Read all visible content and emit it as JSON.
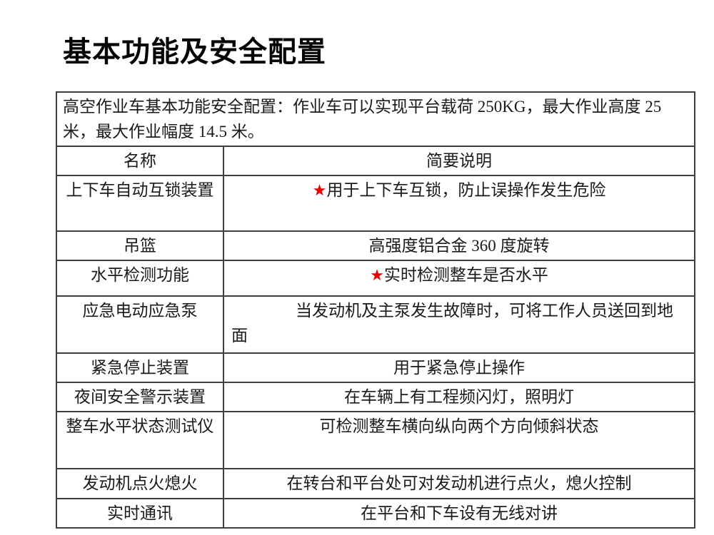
{
  "page": {
    "title": "基本功能及安全配置"
  },
  "colors": {
    "star_red": "#e60000",
    "table_border": "#404040",
    "text": "#1a1a1a",
    "background": "#ffffff"
  },
  "table": {
    "star_glyph": "★",
    "intro": "高空作业车基本功能安全配置：作业车可以实现平台载荷 250KG，最大作业高度 25 米，最大作业幅度 14.5 米。",
    "headers": [
      "名称",
      "简要说明"
    ],
    "rows": [
      {
        "name": "上下车自动互锁装置",
        "desc": "用于上下车互锁，防止误操作发生危险",
        "star": true,
        "indent": false
      },
      {
        "name": "吊篮",
        "desc": "高强度铝合金 360 度旋转",
        "star": false,
        "indent": false
      },
      {
        "name": "水平检测功能",
        "desc": "实时检测整车是否水平",
        "star": true,
        "indent": false
      },
      {
        "name": "应急电动应急泵",
        "desc": "当发动机及主泵发生故障时，可将工作人员送回到地面",
        "star": false,
        "indent": true
      },
      {
        "name": "紧急停止装置",
        "desc": "用于紧急停止操作",
        "star": false,
        "indent": false
      },
      {
        "name": "夜间安全警示装置",
        "desc": "在车辆上有工程频闪灯，照明灯",
        "star": false,
        "indent": false
      },
      {
        "name": "整车水平状态测试仪",
        "desc": "可检测整车横向纵向两个方向倾斜状态",
        "star": false,
        "indent": false
      },
      {
        "name": "发动机点火熄火",
        "desc": "在转台和平台处可对发动机进行点火，熄火控制",
        "star": false,
        "indent": false
      },
      {
        "name": "实时通讯",
        "desc": "在平台和下车设有无线对讲",
        "star": false,
        "indent": false
      }
    ]
  }
}
